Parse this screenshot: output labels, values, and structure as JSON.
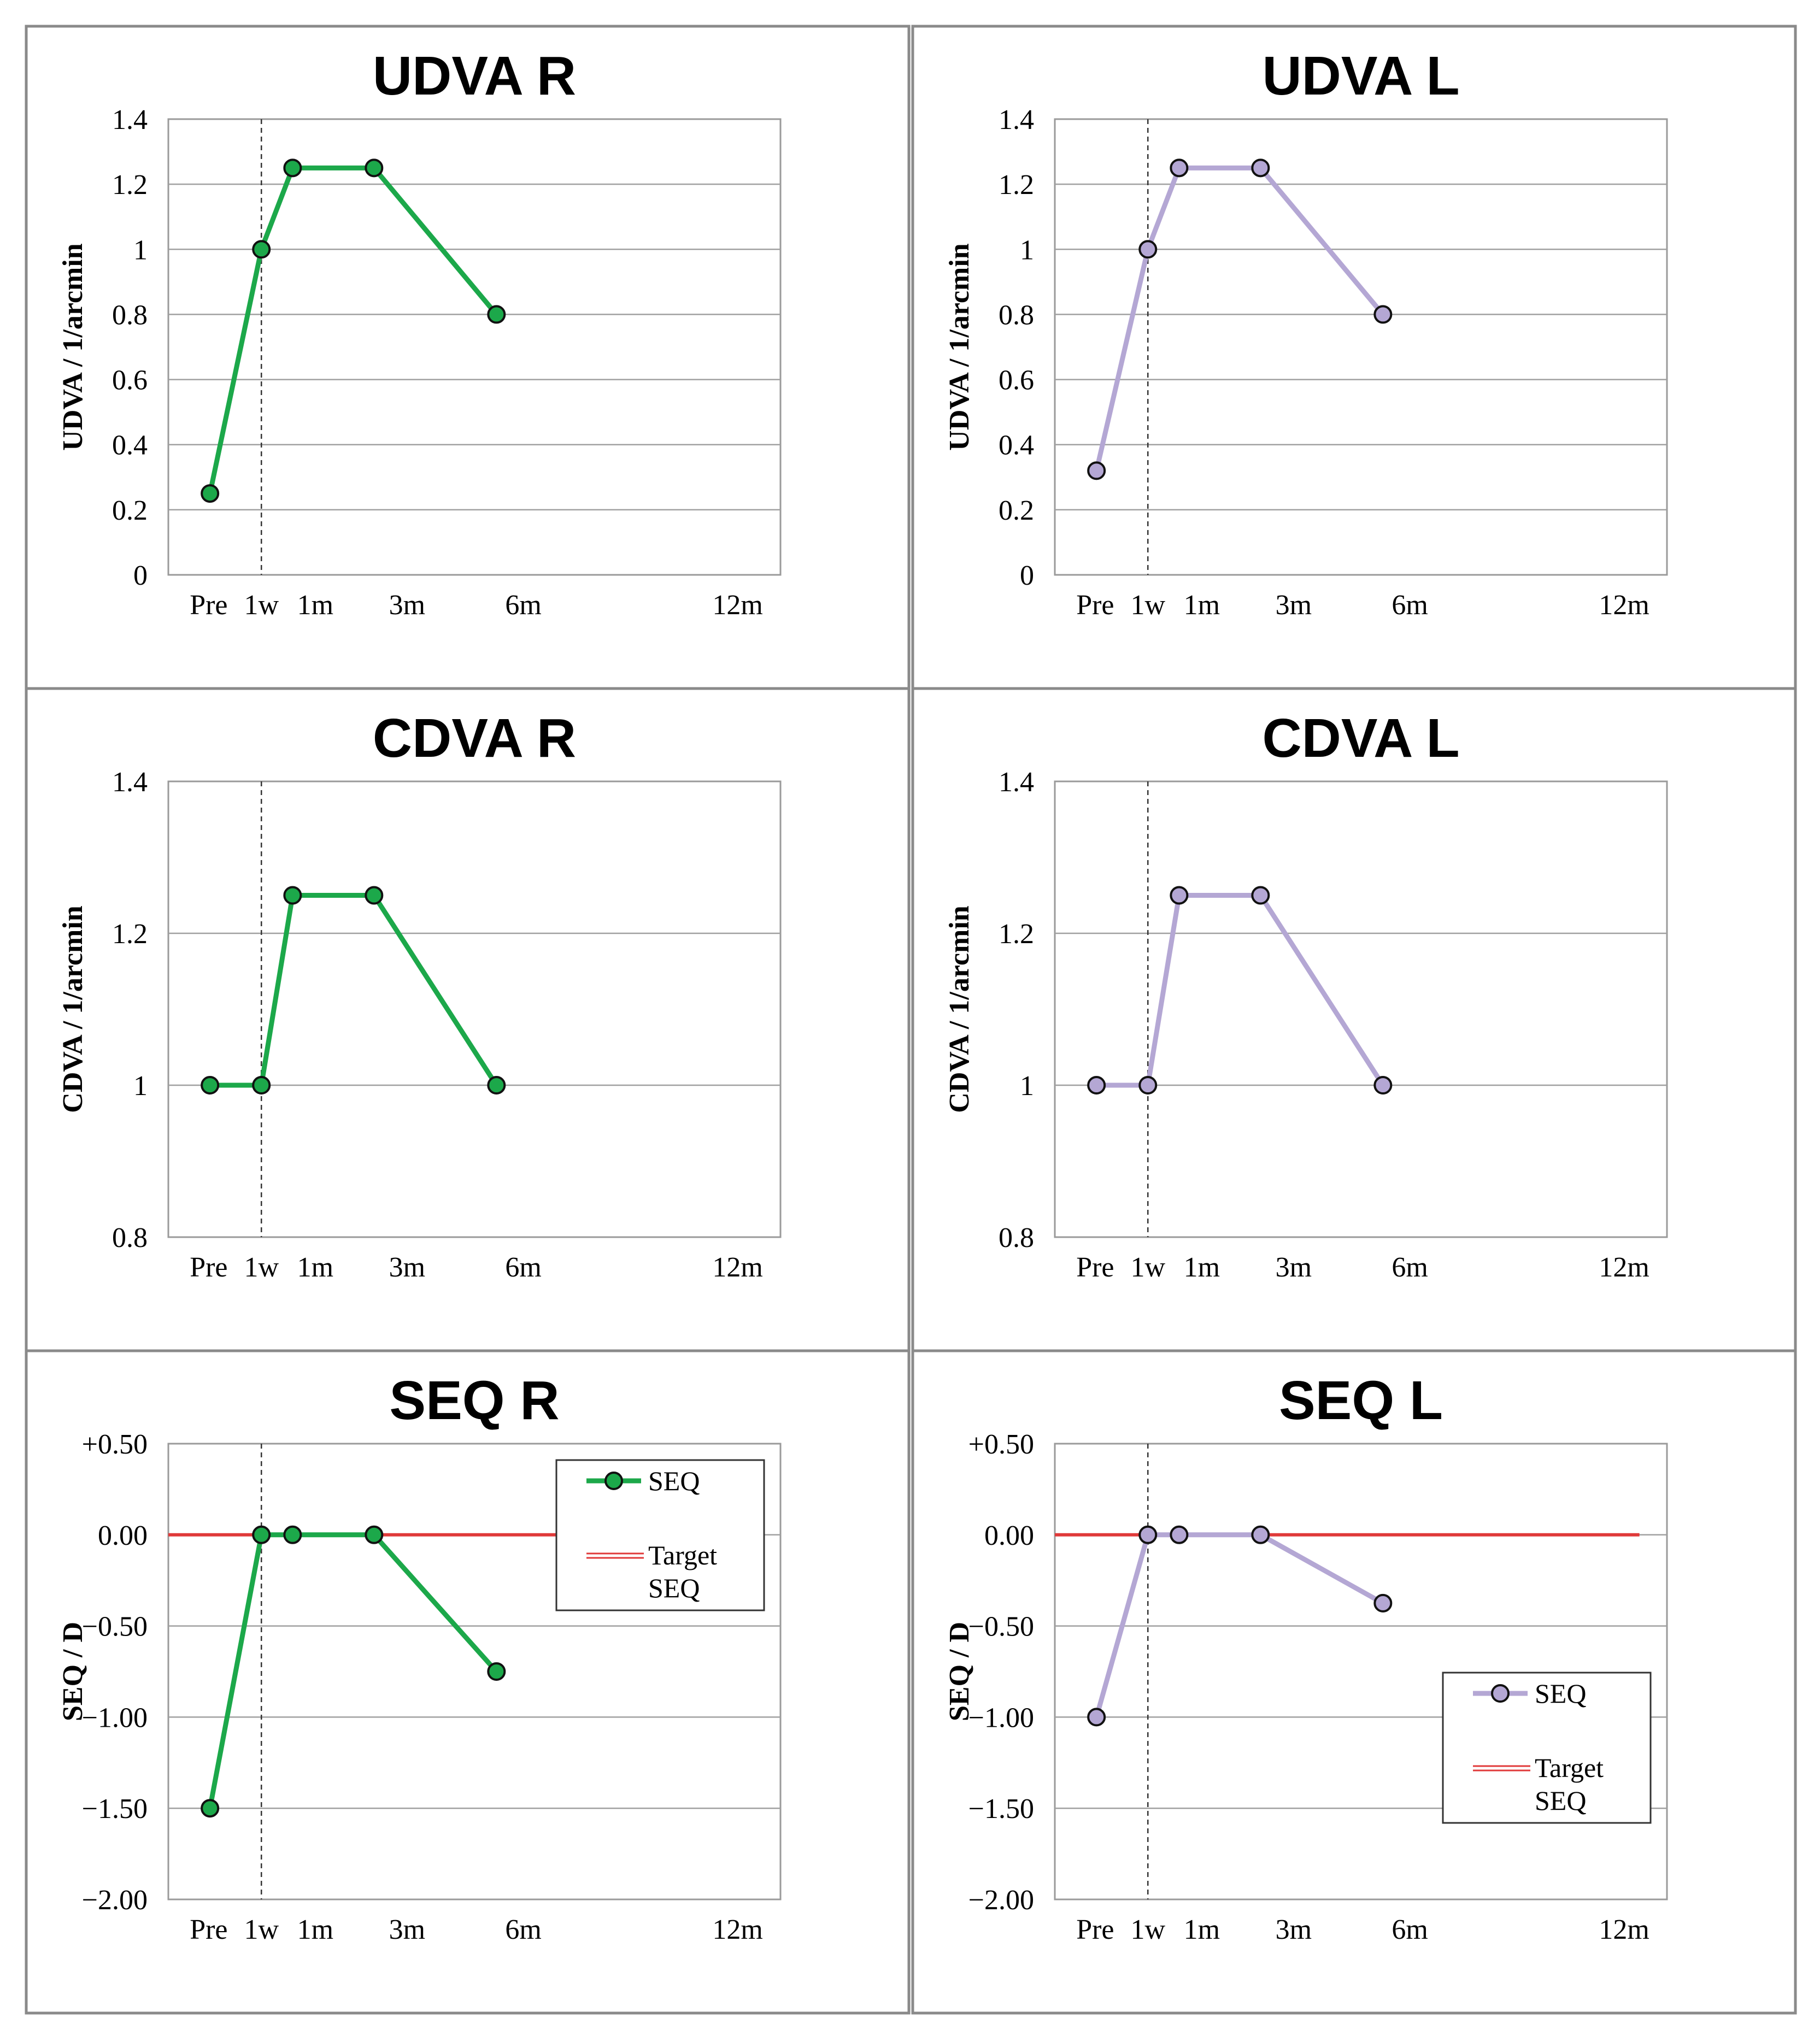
{
  "chart_data": [
    {
      "type": "line",
      "title": "UDVA R",
      "xlabel": "",
      "ylabel": "UDVA / 1/arcmin",
      "x_tick_labels": [
        "Pre",
        "1w",
        "1m",
        "3m",
        "6m",
        "12m"
      ],
      "y_tick_labels": [
        "1.4",
        "1.2",
        "1",
        "0.8",
        "0.6",
        "0.4",
        "0.2",
        "0"
      ],
      "ylim": [
        0,
        1.4
      ],
      "series": [
        {
          "name": "UDVA",
          "color": "#1ca84a",
          "marker_fill": "#1ca84a",
          "points": [
            [
              "Pre",
              0.25
            ],
            [
              "1w",
              1.0
            ],
            [
              "1m",
              1.25
            ],
            [
              "3m",
              1.25
            ],
            [
              "6m",
              0.8
            ]
          ]
        }
      ],
      "reference_line": null,
      "legend": null
    },
    {
      "type": "line",
      "title": "UDVA L",
      "xlabel": "",
      "ylabel": "UDVA / 1/arcmin",
      "x_tick_labels": [
        "Pre",
        "1w",
        "1m",
        "3m",
        "6m",
        "12m"
      ],
      "y_tick_labels": [
        "1.4",
        "1.2",
        "1",
        "0.8",
        "0.6",
        "0.4",
        "0.2",
        "0"
      ],
      "ylim": [
        0,
        1.4
      ],
      "series": [
        {
          "name": "UDVA",
          "color": "#b4a7d4",
          "marker_fill": "#b4a7d4",
          "points": [
            [
              "Pre",
              0.32
            ],
            [
              "1w",
              1.0
            ],
            [
              "1m",
              1.25
            ],
            [
              "3m",
              1.25
            ],
            [
              "6m",
              0.8
            ]
          ]
        }
      ],
      "reference_line": null,
      "legend": null
    },
    {
      "type": "line",
      "title": "CDVA R",
      "xlabel": "",
      "ylabel": "CDVA / 1/arcmin",
      "x_tick_labels": [
        "Pre",
        "1w",
        "1m",
        "3m",
        "6m",
        "12m"
      ],
      "y_tick_labels": [
        "1.4",
        "1.2",
        "1",
        "0.8"
      ],
      "ylim": [
        0.8,
        1.4
      ],
      "series": [
        {
          "name": "CDVA",
          "color": "#1ca84a",
          "marker_fill": "#1ca84a",
          "points": [
            [
              "Pre",
              1.0
            ],
            [
              "1w",
              1.0
            ],
            [
              "1m",
              1.25
            ],
            [
              "3m",
              1.25
            ],
            [
              "6m",
              1.0
            ]
          ]
        }
      ],
      "reference_line": null,
      "legend": null
    },
    {
      "type": "line",
      "title": "CDVA L",
      "xlabel": "",
      "ylabel": "CDVA / 1/arcmin",
      "x_tick_labels": [
        "Pre",
        "1w",
        "1m",
        "3m",
        "6m",
        "12m"
      ],
      "y_tick_labels": [
        "1.4",
        "1.2",
        "1",
        "0.8"
      ],
      "ylim": [
        0.8,
        1.4
      ],
      "series": [
        {
          "name": "CDVA",
          "color": "#b4a7d4",
          "marker_fill": "#b4a7d4",
          "points": [
            [
              "Pre",
              1.0
            ],
            [
              "1w",
              1.0
            ],
            [
              "1m",
              1.25
            ],
            [
              "3m",
              1.25
            ],
            [
              "6m",
              1.0
            ]
          ]
        }
      ],
      "reference_line": null,
      "legend": null
    },
    {
      "type": "line",
      "title": "SEQ R",
      "xlabel": "",
      "ylabel": "SEQ / D",
      "x_tick_labels": [
        "Pre",
        "1w",
        "1m",
        "3m",
        "6m",
        "12m"
      ],
      "y_tick_labels": [
        "+0.50",
        "0.00",
        "−0.50",
        "−1.00",
        "−1.50",
        "−2.00"
      ],
      "ylim": [
        -2.0,
        0.5
      ],
      "series": [
        {
          "name": "SEQ",
          "color": "#1ca84a",
          "marker_fill": "#1ca84a",
          "points": [
            [
              "Pre",
              -1.5
            ],
            [
              "1w",
              0.0
            ],
            [
              "1m",
              0.0
            ],
            [
              "3m",
              0.0
            ],
            [
              "6m",
              -0.75
            ]
          ]
        }
      ],
      "reference_line": {
        "name": "Target SEQ",
        "value": 0.0,
        "color": "#e03a3a"
      },
      "legend": {
        "placement": "top-right",
        "entries": [
          {
            "kind": "series",
            "label": "SEQ"
          },
          {
            "kind": "reference",
            "label_lines": [
              "Target",
              "SEQ"
            ]
          }
        ]
      }
    },
    {
      "type": "line",
      "title": "SEQ L",
      "xlabel": "",
      "ylabel": "SEQ / D",
      "x_tick_labels": [
        "Pre",
        "1w",
        "1m",
        "3m",
        "6m",
        "12m"
      ],
      "y_tick_labels": [
        "+0.50",
        "0.00",
        "−0.50",
        "−1.00",
        "−1.50",
        "−2.00"
      ],
      "ylim": [
        -2.0,
        0.5
      ],
      "series": [
        {
          "name": "SEQ",
          "color": "#b4a7d4",
          "marker_fill": "#b4a7d4",
          "points": [
            [
              "Pre",
              -1.0
            ],
            [
              "1w",
              0.0
            ],
            [
              "1m",
              0.0
            ],
            [
              "3m",
              0.0
            ],
            [
              "6m",
              -0.375
            ]
          ]
        }
      ],
      "reference_line": {
        "name": "Target SEQ",
        "value": 0.0,
        "color": "#e03a3a"
      },
      "legend": {
        "placement": "bottom-right",
        "entries": [
          {
            "kind": "series",
            "label": "SEQ"
          },
          {
            "kind": "reference",
            "label_lines": [
              "Target",
              "SEQ"
            ]
          }
        ]
      }
    }
  ]
}
